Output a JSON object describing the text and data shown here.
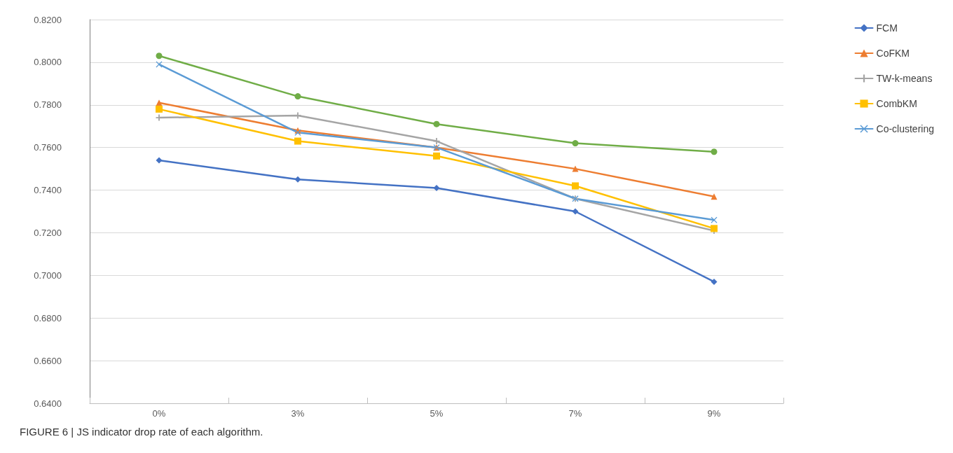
{
  "chart_data": {
    "type": "line",
    "categories": [
      "0%",
      "3%",
      "5%",
      "7%",
      "9%"
    ],
    "series": [
      {
        "name": "FCM",
        "color": "#4472c4",
        "marker": "diamond",
        "values": [
          0.754,
          0.745,
          0.741,
          0.73,
          0.697
        ]
      },
      {
        "name": "CoFKM",
        "color": "#ed7d31",
        "marker": "triangle",
        "values": [
          0.781,
          0.768,
          0.76,
          0.75,
          0.737
        ]
      },
      {
        "name": "TW-k-means",
        "color": "#a5a5a5",
        "marker": "cross",
        "values": [
          0.774,
          0.775,
          0.763,
          0.736,
          0.721
        ]
      },
      {
        "name": "CombKM",
        "color": "#ffc000",
        "marker": "square",
        "values": [
          0.778,
          0.763,
          0.756,
          0.742,
          0.722
        ]
      },
      {
        "name": "Co-clustering",
        "color": "#5b9bd5",
        "marker": "x",
        "values": [
          0.799,
          0.767,
          0.76,
          0.736,
          0.726
        ]
      },
      {
        "color": "#70ad47",
        "marker": "circle",
        "values": [
          0.803,
          0.784,
          0.771,
          0.762,
          0.758
        ]
      }
    ],
    "ylim": [
      0.64,
      0.82
    ],
    "yticks": [
      {
        "value": 0.64,
        "label": "0.6400"
      },
      {
        "value": 0.66,
        "label": "0.6600"
      },
      {
        "value": 0.68,
        "label": "0.6800"
      },
      {
        "value": 0.7,
        "label": "0.7000"
      },
      {
        "value": 0.72,
        "label": "0.7200"
      },
      {
        "value": 0.74,
        "label": "0.7400"
      },
      {
        "value": 0.76,
        "label": "0.7600"
      },
      {
        "value": 0.78,
        "label": "0.7800"
      },
      {
        "value": 0.8,
        "label": "0.8000"
      },
      {
        "value": 0.82,
        "label": "0.8200"
      }
    ],
    "grid": "y",
    "legend": "right",
    "line_style": "solid",
    "annotations": [
      "FIGURE 6 | JS indicator drop rate of each algorithm."
    ]
  }
}
